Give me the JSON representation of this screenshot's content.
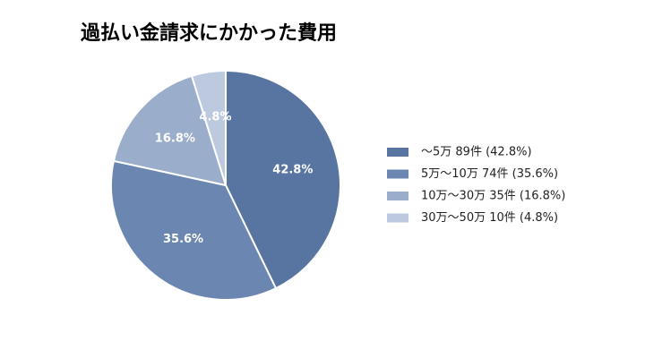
{
  "chart_data": {
    "type": "pie",
    "title": "過払い金請求にかかった費用",
    "categories": [
      "～5万 89件 (42.8%)",
      "5万～10万 74件 (35.6%)",
      "10万～30万 35件 (16.8%)",
      "30万～50万 10件 (4.8%)"
    ],
    "values": [
      42.8,
      35.6,
      16.8,
      4.8
    ],
    "value_labels": [
      "42.8%",
      "35.6%",
      "16.8%",
      "4.8%"
    ],
    "colors": [
      "#5874a1",
      "#6b86b0",
      "#9aaecb",
      "#bcc9de"
    ],
    "legend": "right"
  }
}
